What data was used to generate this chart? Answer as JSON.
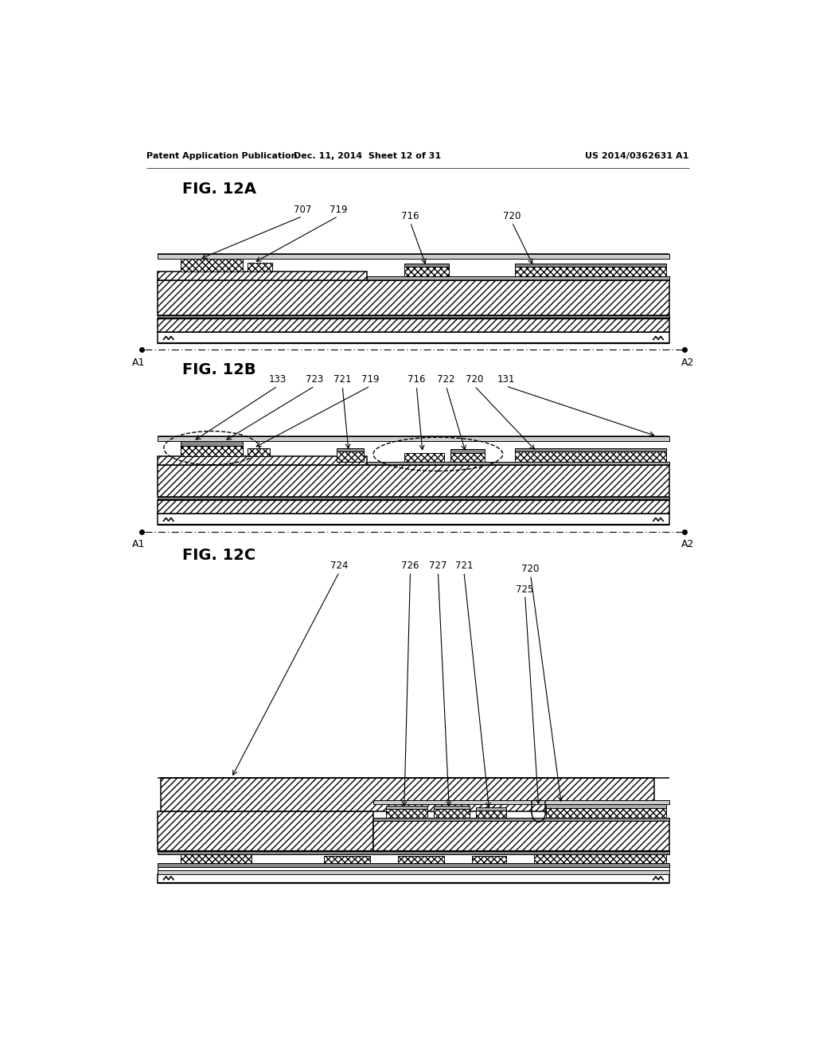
{
  "header_left": "Patent Application Publication",
  "header_mid": "Dec. 11, 2014  Sheet 12 of 31",
  "header_right": "US 2014/0362631 A1",
  "bg": "#ffffff",
  "lw_thin": 0.7,
  "lw_med": 1.1,
  "lw_thick": 1.6,
  "hatch_diag": "////",
  "hatch_cross": "xxxx",
  "gray1": "#cccccc",
  "gray2": "#aaaaaa",
  "gray3": "#888888"
}
